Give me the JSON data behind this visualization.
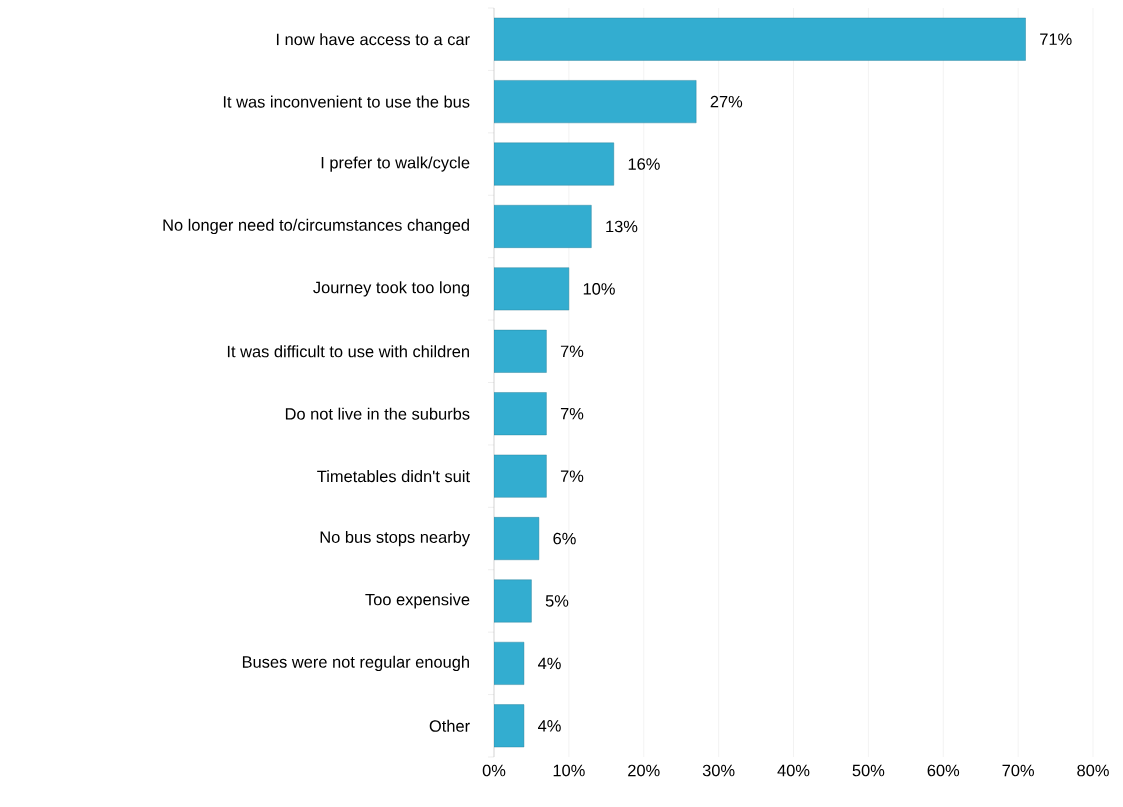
{
  "chart_data": {
    "type": "bar",
    "orientation": "horizontal",
    "categories": [
      "I now have access to a car",
      "It was inconvenient to use the bus",
      "I prefer to walk/cycle",
      "No longer need to/circumstances changed",
      "Journey took too long",
      "It was difficult to use with children",
      "Do not live in the suburbs",
      "Timetables didn't suit",
      "No bus stops nearby",
      "Too expensive",
      "Buses were not regular enough",
      "Other"
    ],
    "values": [
      71,
      27,
      16,
      13,
      10,
      7,
      7,
      7,
      6,
      5,
      4,
      4
    ],
    "value_labels": [
      "71%",
      "27%",
      "16%",
      "13%",
      "10%",
      "7%",
      "7%",
      "7%",
      "6%",
      "5%",
      "4%",
      "4%"
    ],
    "color": "#33add0",
    "xlim": [
      0,
      80
    ],
    "xticks": [
      {
        "value": 0,
        "label": "0%"
      },
      {
        "value": 10,
        "label": "10%"
      },
      {
        "value": 20,
        "label": "20%"
      },
      {
        "value": 30,
        "label": "30%"
      },
      {
        "value": 40,
        "label": "40%"
      },
      {
        "value": 50,
        "label": "50%"
      },
      {
        "value": 60,
        "label": "60%"
      },
      {
        "value": 70,
        "label": "70%"
      },
      {
        "value": 80,
        "label": "80%"
      }
    ],
    "grid": "x"
  }
}
